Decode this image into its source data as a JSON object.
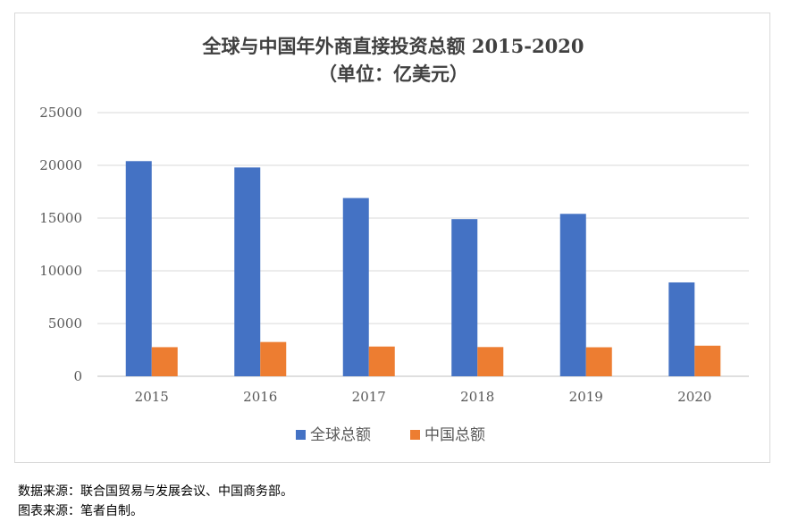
{
  "chart_data": {
    "type": "bar",
    "title": "全球与中国年外商直接投资总额 2015-2020",
    "subtitle": "（单位：亿美元）",
    "categories": [
      "2015",
      "2016",
      "2017",
      "2018",
      "2019",
      "2020"
    ],
    "series": [
      {
        "name": "全球总额",
        "color": "#4472c4",
        "values": [
          20400,
          19800,
          16900,
          14900,
          15400,
          8900
        ]
      },
      {
        "name": "中国总额",
        "color": "#ed7d31",
        "values": [
          2760,
          3250,
          2820,
          2770,
          2750,
          2900
        ]
      }
    ],
    "ylim": [
      0,
      25000
    ],
    "yticks": [
      "0",
      "5000",
      "10000",
      "15000",
      "20000",
      "25000"
    ],
    "grid": true,
    "legend": "bottom"
  },
  "notes": {
    "source": "数据来源：联合国贸易与发展会议、中国商务部。",
    "chart_source": "图表来源：笔者自制。"
  }
}
